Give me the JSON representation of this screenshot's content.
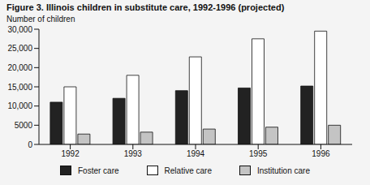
{
  "chart_data": {
    "type": "bar",
    "title": "Figure 3. Illinois children in substitute care, 1992-1996 (projected)",
    "y_label": "Number of children",
    "categories": [
      "1992",
      "1993",
      "1994",
      "1995",
      "1996"
    ],
    "series": [
      {
        "name": "Foster care",
        "color": "#222222",
        "values": [
          11000,
          12000,
          14000,
          14700,
          15200
        ]
      },
      {
        "name": "Relative care",
        "color": "#ffffff",
        "values": [
          15000,
          18000,
          22800,
          27500,
          29500
        ]
      },
      {
        "name": "Institution care",
        "color": "#c4c4c4",
        "values": [
          2700,
          3200,
          4000,
          4500,
          5000
        ]
      }
    ],
    "ylim": [
      0,
      30000
    ],
    "yticks": [
      0,
      5000,
      {
        "value": 10000,
        "label": "10,000"
      },
      {
        "value": 15000,
        "label": "15,000"
      },
      {
        "value": 20000,
        "label": "20,000"
      },
      {
        "value": 25000,
        "label": "25,000"
      },
      {
        "value": 30000,
        "label": "30,000"
      }
    ],
    "grid": false,
    "legend": "bottom"
  }
}
